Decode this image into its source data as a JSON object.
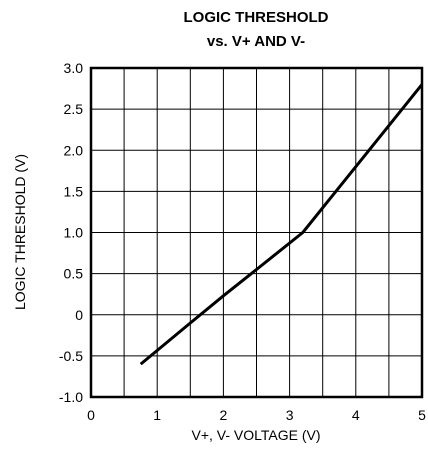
{
  "chart_data": {
    "type": "line",
    "title": "LOGIC THRESHOLD",
    "subtitle": "vs. V+ AND V-",
    "xlabel": "V+, V- VOLTAGE (V)",
    "ylabel": "LOGIC THRESHOLD (V)",
    "xlim": [
      0,
      5
    ],
    "ylim": [
      -1.0,
      3.0
    ],
    "x_ticks": [
      "0",
      "1",
      "2",
      "3",
      "4",
      "5"
    ],
    "y_ticks": [
      "-1.0",
      "-0.5",
      "0",
      "0.5",
      "1.0",
      "1.5",
      "2.0",
      "2.5",
      "3.0"
    ],
    "x_grid": [
      0.5,
      1,
      1.5,
      2,
      2.5,
      3,
      3.5,
      4,
      4.5
    ],
    "y_grid": [
      -0.5,
      0,
      0.5,
      1.0,
      1.5,
      2.0,
      2.5
    ],
    "grid": true,
    "legend": "none",
    "series": [
      {
        "x": [
          0.75,
          1.5,
          2.0,
          2.5,
          3.2,
          3.6,
          4.0,
          4.5,
          5.0
        ],
        "y": [
          -0.6,
          -0.1,
          0.23,
          0.55,
          1.0,
          1.4,
          1.8,
          2.3,
          2.8
        ]
      }
    ]
  }
}
